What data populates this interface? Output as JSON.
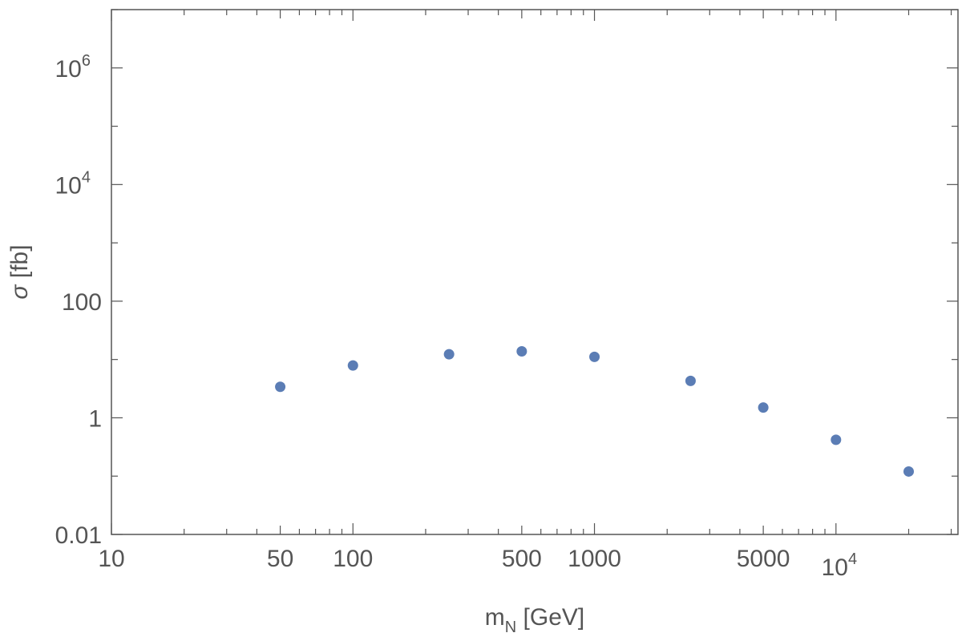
{
  "chart_data": {
    "type": "scatter",
    "xlabel": {
      "main": "m",
      "sub": "N",
      "unit": " [GeV]"
    },
    "ylabel": {
      "symbol": "σ",
      "unit": " [fb]"
    },
    "xscale": "log",
    "yscale": "log",
    "xlim": [
      10,
      32000
    ],
    "ylim": [
      0.01,
      10000000
    ],
    "grid": false,
    "x_ticks": [
      {
        "value": 10,
        "label": "10"
      },
      {
        "value": 50,
        "label": "50"
      },
      {
        "value": 100,
        "label": "100"
      },
      {
        "value": 500,
        "label": "500"
      },
      {
        "value": 1000,
        "label": "1000"
      },
      {
        "value": 5000,
        "label": "5000"
      },
      {
        "value": 10000,
        "label": "10",
        "sup": "4"
      }
    ],
    "y_ticks": [
      {
        "value": 0.01,
        "label": "0.01"
      },
      {
        "value": 1,
        "label": "1"
      },
      {
        "value": 100,
        "label": "100"
      },
      {
        "value": 10000,
        "label": "10",
        "sup": "4"
      },
      {
        "value": 1000000,
        "label": "10",
        "sup": "6"
      }
    ],
    "marker_color": "#5b7db5",
    "axis_color": "#555555",
    "points": [
      {
        "x": 50,
        "y": 3.4
      },
      {
        "x": 100,
        "y": 7.9
      },
      {
        "x": 250,
        "y": 12.3
      },
      {
        "x": 500,
        "y": 13.8
      },
      {
        "x": 1000,
        "y": 11.1
      },
      {
        "x": 2500,
        "y": 4.3
      },
      {
        "x": 5000,
        "y": 1.5
      },
      {
        "x": 10000,
        "y": 0.42
      },
      {
        "x": 20000,
        "y": 0.12
      }
    ]
  }
}
